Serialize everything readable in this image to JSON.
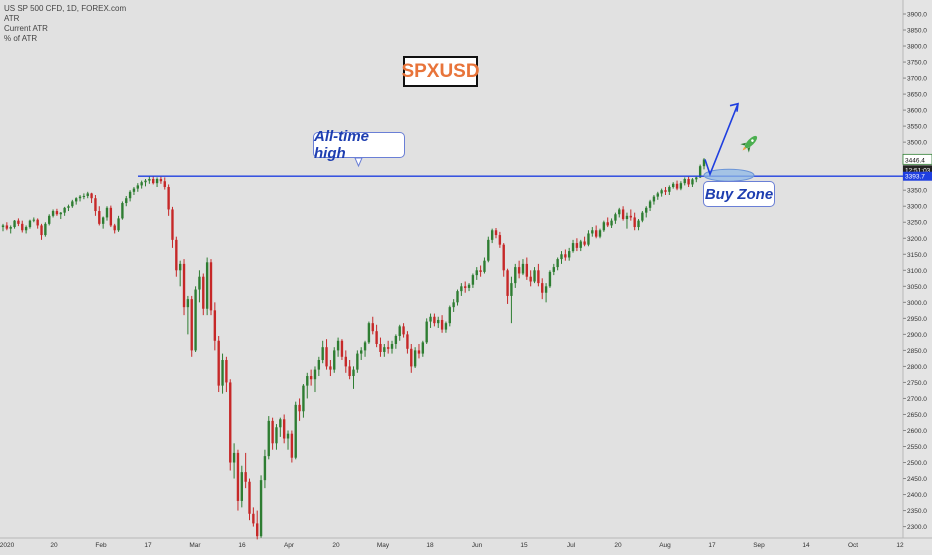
{
  "legend": {
    "line1": "US SP 500 CFD, 1D, FOREX.com",
    "line2": "ATR",
    "line3": "Current ATR",
    "line4": "% of ATR"
  },
  "ticker_label": "SPXUSD",
  "annotations": {
    "ath_label": "All-time high",
    "buy_zone_label": "Buy Zone"
  },
  "price_tags": {
    "last_price": "3446.4",
    "countdown": "12:51:03",
    "ath_level": "3393.7"
  },
  "colors": {
    "background": "#e1e1e1",
    "up_candle": "#2e7d32",
    "down_candle": "#c62828",
    "ath_line": "#1f3fe0",
    "callout_text": "#1e3eb0",
    "ticker_text": "#e8743a",
    "buy_zone_fill": "#8fb8e6",
    "rocket": "#4caf50"
  },
  "chart_data": {
    "type": "candlestick",
    "title": "US SP 500 CFD, 1D, FOREX.com",
    "y_axis": {
      "position": "right",
      "ylim": [
        2280,
        3925
      ],
      "ticks": [
        "2300.0",
        "2350.0",
        "2400.0",
        "2450.0",
        "2500.0",
        "2550.0",
        "2600.0",
        "2650.0",
        "2700.0",
        "2750.0",
        "2800.0",
        "2850.0",
        "2900.0",
        "2950.0",
        "3000.0",
        "3050.0",
        "3100.0",
        "3150.0",
        "3200.0",
        "3250.0",
        "3300.0",
        "3350.0",
        "3400.0",
        "3450.0",
        "3500.0",
        "3550.0",
        "3600.0",
        "3650.0",
        "3700.0",
        "3750.0",
        "3800.0",
        "3850.0",
        "3900.0"
      ]
    },
    "x_axis": {
      "tick_labels": [
        "2020",
        "20",
        "Feb",
        "17",
        "Mar",
        "16",
        "Apr",
        "20",
        "May",
        "18",
        "Jun",
        "15",
        "Jul",
        "20",
        "Aug",
        "17",
        "Sep",
        "14",
        "Oct",
        "12"
      ]
    },
    "horizontal_line": {
      "label": "All-time high",
      "value": 3393.7
    },
    "buy_zone": {
      "label": "Buy Zone",
      "value": 3393.7
    },
    "last_price": 3446.4,
    "candles": [
      [
        3235,
        3245,
        3222,
        3240
      ],
      [
        3240,
        3250,
        3225,
        3230
      ],
      [
        3230,
        3240,
        3215,
        3235
      ],
      [
        3235,
        3257,
        3230,
        3255
      ],
      [
        3255,
        3262,
        3238,
        3245
      ],
      [
        3245,
        3255,
        3218,
        3225
      ],
      [
        3225,
        3240,
        3215,
        3235
      ],
      [
        3235,
        3258,
        3230,
        3255
      ],
      [
        3255,
        3265,
        3250,
        3258
      ],
      [
        3258,
        3262,
        3230,
        3240
      ],
      [
        3240,
        3245,
        3195,
        3210
      ],
      [
        3210,
        3250,
        3205,
        3245
      ],
      [
        3245,
        3275,
        3240,
        3270
      ],
      [
        3270,
        3290,
        3265,
        3285
      ],
      [
        3285,
        3292,
        3270,
        3275
      ],
      [
        3275,
        3282,
        3260,
        3280
      ],
      [
        3280,
        3298,
        3270,
        3295
      ],
      [
        3295,
        3305,
        3285,
        3300
      ],
      [
        3300,
        3320,
        3295,
        3315
      ],
      [
        3315,
        3328,
        3305,
        3325
      ],
      [
        3325,
        3335,
        3315,
        3330
      ],
      [
        3330,
        3340,
        3322,
        3332
      ],
      [
        3332,
        3345,
        3325,
        3340
      ],
      [
        3340,
        3342,
        3310,
        3325
      ],
      [
        3325,
        3335,
        3270,
        3285
      ],
      [
        3285,
        3300,
        3240,
        3245
      ],
      [
        3245,
        3268,
        3230,
        3265
      ],
      [
        3265,
        3300,
        3255,
        3295
      ],
      [
        3295,
        3302,
        3235,
        3240
      ],
      [
        3240,
        3245,
        3215,
        3225
      ],
      [
        3225,
        3270,
        3220,
        3262
      ],
      [
        3262,
        3315,
        3258,
        3310
      ],
      [
        3310,
        3332,
        3300,
        3325
      ],
      [
        3325,
        3350,
        3315,
        3345
      ],
      [
        3345,
        3360,
        3335,
        3355
      ],
      [
        3355,
        3372,
        3345,
        3365
      ],
      [
        3365,
        3380,
        3355,
        3375
      ],
      [
        3375,
        3385,
        3362,
        3380
      ],
      [
        3380,
        3393,
        3370,
        3385
      ],
      [
        3385,
        3393,
        3368,
        3372
      ],
      [
        3372,
        3390,
        3360,
        3385
      ],
      [
        3385,
        3392,
        3370,
        3378
      ],
      [
        3378,
        3390,
        3352,
        3360
      ],
      [
        3360,
        3368,
        3270,
        3290
      ],
      [
        3290,
        3298,
        3170,
        3195
      ],
      [
        3195,
        3205,
        3080,
        3100
      ],
      [
        3100,
        3130,
        3050,
        3120
      ],
      [
        3120,
        3135,
        2960,
        2985
      ],
      [
        2985,
        3020,
        2900,
        3010
      ],
      [
        3010,
        3020,
        2830,
        2850
      ],
      [
        2850,
        3050,
        2845,
        3040
      ],
      [
        3040,
        3100,
        3000,
        3080
      ],
      [
        3080,
        3090,
        2960,
        2980
      ],
      [
        2980,
        3140,
        2960,
        3125
      ],
      [
        3125,
        3135,
        2960,
        2975
      ],
      [
        2975,
        3000,
        2850,
        2880
      ],
      [
        2880,
        2895,
        2720,
        2740
      ],
      [
        2740,
        2840,
        2715,
        2820
      ],
      [
        2820,
        2830,
        2720,
        2750
      ],
      [
        2750,
        2760,
        2475,
        2500
      ],
      [
        2500,
        2560,
        2450,
        2530
      ],
      [
        2530,
        2540,
        2350,
        2380
      ],
      [
        2380,
        2490,
        2360,
        2470
      ],
      [
        2470,
        2530,
        2420,
        2440
      ],
      [
        2440,
        2450,
        2320,
        2340
      ],
      [
        2340,
        2360,
        2300,
        2310
      ],
      [
        2310,
        2350,
        2260,
        2270
      ],
      [
        2270,
        2460,
        2265,
        2445
      ],
      [
        2445,
        2540,
        2420,
        2520
      ],
      [
        2520,
        2645,
        2510,
        2630
      ],
      [
        2630,
        2640,
        2540,
        2560
      ],
      [
        2560,
        2620,
        2540,
        2610
      ],
      [
        2610,
        2640,
        2580,
        2635
      ],
      [
        2635,
        2650,
        2560,
        2575
      ],
      [
        2575,
        2600,
        2540,
        2590
      ],
      [
        2590,
        2600,
        2500,
        2515
      ],
      [
        2515,
        2690,
        2510,
        2680
      ],
      [
        2680,
        2700,
        2630,
        2660
      ],
      [
        2660,
        2745,
        2640,
        2740
      ],
      [
        2740,
        2780,
        2700,
        2770
      ],
      [
        2770,
        2790,
        2740,
        2760
      ],
      [
        2760,
        2800,
        2720,
        2790
      ],
      [
        2790,
        2830,
        2770,
        2820
      ],
      [
        2820,
        2880,
        2810,
        2860
      ],
      [
        2860,
        2885,
        2790,
        2800
      ],
      [
        2800,
        2820,
        2770,
        2790
      ],
      [
        2790,
        2860,
        2780,
        2850
      ],
      [
        2850,
        2890,
        2830,
        2880
      ],
      [
        2880,
        2885,
        2820,
        2830
      ],
      [
        2830,
        2850,
        2780,
        2800
      ],
      [
        2800,
        2820,
        2760,
        2770
      ],
      [
        2770,
        2800,
        2730,
        2790
      ],
      [
        2790,
        2850,
        2780,
        2840
      ],
      [
        2840,
        2860,
        2820,
        2850
      ],
      [
        2850,
        2880,
        2830,
        2875
      ],
      [
        2875,
        2940,
        2870,
        2935
      ],
      [
        2935,
        2955,
        2900,
        2910
      ],
      [
        2910,
        2930,
        2860,
        2870
      ],
      [
        2870,
        2890,
        2830,
        2845
      ],
      [
        2845,
        2870,
        2830,
        2860
      ],
      [
        2860,
        2880,
        2840,
        2855
      ],
      [
        2855,
        2880,
        2840,
        2870
      ],
      [
        2870,
        2900,
        2855,
        2895
      ],
      [
        2895,
        2930,
        2880,
        2925
      ],
      [
        2925,
        2935,
        2890,
        2900
      ],
      [
        2900,
        2910,
        2840,
        2855
      ],
      [
        2855,
        2870,
        2780,
        2800
      ],
      [
        2800,
        2860,
        2795,
        2850
      ],
      [
        2850,
        2870,
        2825,
        2840
      ],
      [
        2840,
        2880,
        2830,
        2875
      ],
      [
        2875,
        2950,
        2870,
        2940
      ],
      [
        2940,
        2965,
        2920,
        2955
      ],
      [
        2955,
        2965,
        2925,
        2935
      ],
      [
        2935,
        2955,
        2920,
        2945
      ],
      [
        2945,
        2960,
        2905,
        2915
      ],
      [
        2915,
        2940,
        2905,
        2935
      ],
      [
        2935,
        2990,
        2925,
        2985
      ],
      [
        2985,
        3010,
        2970,
        3000
      ],
      [
        3000,
        3040,
        2990,
        3035
      ],
      [
        3035,
        3060,
        3020,
        3050
      ],
      [
        3050,
        3065,
        3030,
        3045
      ],
      [
        3045,
        3060,
        3035,
        3055
      ],
      [
        3055,
        3090,
        3045,
        3085
      ],
      [
        3085,
        3110,
        3070,
        3100
      ],
      [
        3100,
        3115,
        3080,
        3095
      ],
      [
        3095,
        3140,
        3090,
        3130
      ],
      [
        3130,
        3205,
        3125,
        3195
      ],
      [
        3195,
        3230,
        3185,
        3225
      ],
      [
        3225,
        3232,
        3200,
        3210
      ],
      [
        3210,
        3220,
        3170,
        3180
      ],
      [
        3180,
        3185,
        3080,
        3100
      ],
      [
        3100,
        3105,
        2995,
        3020
      ],
      [
        3020,
        3080,
        2935,
        3060
      ],
      [
        3060,
        3120,
        3045,
        3110
      ],
      [
        3110,
        3130,
        3075,
        3090
      ],
      [
        3090,
        3135,
        3085,
        3120
      ],
      [
        3120,
        3140,
        3070,
        3080
      ],
      [
        3080,
        3100,
        3050,
        3065
      ],
      [
        3065,
        3110,
        3060,
        3100
      ],
      [
        3100,
        3120,
        3050,
        3060
      ],
      [
        3060,
        3075,
        3010,
        3030
      ],
      [
        3030,
        3060,
        3000,
        3050
      ],
      [
        3050,
        3100,
        3045,
        3095
      ],
      [
        3095,
        3120,
        3085,
        3110
      ],
      [
        3110,
        3140,
        3100,
        3135
      ],
      [
        3135,
        3160,
        3120,
        3150
      ],
      [
        3150,
        3165,
        3130,
        3140
      ],
      [
        3140,
        3170,
        3130,
        3160
      ],
      [
        3160,
        3195,
        3155,
        3185
      ],
      [
        3185,
        3200,
        3160,
        3170
      ],
      [
        3170,
        3195,
        3160,
        3190
      ],
      [
        3190,
        3205,
        3175,
        3180
      ],
      [
        3180,
        3225,
        3175,
        3215
      ],
      [
        3215,
        3235,
        3205,
        3225
      ],
      [
        3225,
        3240,
        3200,
        3205
      ],
      [
        3205,
        3230,
        3200,
        3225
      ],
      [
        3225,
        3255,
        3220,
        3250
      ],
      [
        3250,
        3265,
        3235,
        3240
      ],
      [
        3240,
        3262,
        3232,
        3255
      ],
      [
        3255,
        3280,
        3245,
        3275
      ],
      [
        3275,
        3295,
        3265,
        3290
      ],
      [
        3290,
        3300,
        3255,
        3260
      ],
      [
        3260,
        3280,
        3230,
        3270
      ],
      [
        3270,
        3290,
        3255,
        3265
      ],
      [
        3265,
        3280,
        3225,
        3235
      ],
      [
        3235,
        3260,
        3225,
        3255
      ],
      [
        3255,
        3285,
        3250,
        3280
      ],
      [
        3280,
        3300,
        3265,
        3295
      ],
      [
        3295,
        3320,
        3285,
        3315
      ],
      [
        3315,
        3335,
        3305,
        3330
      ],
      [
        3330,
        3345,
        3320,
        3340
      ],
      [
        3340,
        3355,
        3330,
        3350
      ],
      [
        3350,
        3360,
        3335,
        3345
      ],
      [
        3345,
        3365,
        3335,
        3360
      ],
      [
        3360,
        3375,
        3355,
        3370
      ],
      [
        3370,
        3380,
        3350,
        3355
      ],
      [
        3355,
        3378,
        3350,
        3372
      ],
      [
        3372,
        3390,
        3365,
        3385
      ],
      [
        3385,
        3392,
        3360,
        3368
      ],
      [
        3368,
        3388,
        3360,
        3384
      ],
      [
        3384,
        3392,
        3375,
        3390
      ],
      [
        3390,
        3430,
        3388,
        3425
      ],
      [
        3425,
        3450,
        3415,
        3446
      ]
    ],
    "projection_arrow": {
      "from_value": 3393.7,
      "to_value": 3620
    }
  }
}
